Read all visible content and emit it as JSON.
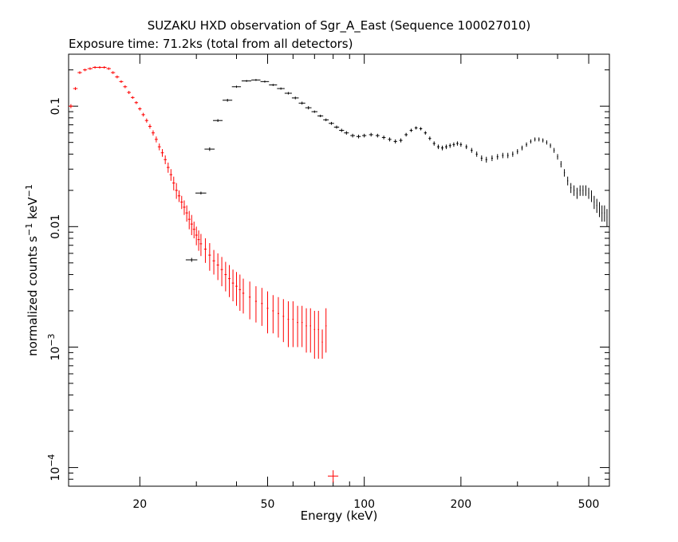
{
  "chart_data": {
    "type": "scatter",
    "title": "SUZAKU HXD observation of Sgr_A_East (Sequence 100027010)",
    "subtitle": "Exposure time: 71.2ks (total from all detectors)",
    "xlabel": "Energy (keV)",
    "ylabel": "normalized counts s^-1 keV^-1",
    "ylabel_parts": {
      "main": "normalized counts s",
      "exp1": "−1",
      "mid": " keV",
      "exp2": "−1"
    },
    "xscale": "log",
    "yscale": "log",
    "xlim": [
      12,
      580
    ],
    "ylim": [
      7e-05,
      0.27
    ],
    "x_ticks": [
      {
        "value": 20,
        "label": "20"
      },
      {
        "value": 50,
        "label": "50"
      },
      {
        "value": 100,
        "label": "100"
      },
      {
        "value": 200,
        "label": "200"
      },
      {
        "value": 500,
        "label": "500"
      }
    ],
    "y_ticks": [
      {
        "value": 0.1,
        "label": "0.1",
        "base": "",
        "exp": ""
      },
      {
        "value": 0.01,
        "label": "0.01",
        "base": "",
        "exp": ""
      },
      {
        "value": 0.001,
        "label": "",
        "base": "10",
        "exp": "−3"
      },
      {
        "value": 0.0001,
        "label": "",
        "base": "10",
        "exp": "−4"
      }
    ],
    "grid": false,
    "series": [
      {
        "color": "#ff0000",
        "points": [
          [
            12.2,
            0.1,
            0.2,
            0.004
          ],
          [
            12.6,
            0.14,
            0.2,
            0.004
          ],
          [
            13.0,
            0.19,
            0.2,
            0.005
          ],
          [
            13.5,
            0.2,
            0.2,
            0.005
          ],
          [
            14.0,
            0.205,
            0.25,
            0.005
          ],
          [
            14.5,
            0.21,
            0.25,
            0.005
          ],
          [
            15.0,
            0.21,
            0.25,
            0.005
          ],
          [
            15.5,
            0.21,
            0.25,
            0.005
          ],
          [
            16.0,
            0.205,
            0.25,
            0.005
          ],
          [
            16.5,
            0.19,
            0.25,
            0.005
          ],
          [
            17.0,
            0.175,
            0.25,
            0.005
          ],
          [
            17.5,
            0.16,
            0.25,
            0.004
          ],
          [
            18.0,
            0.145,
            0.25,
            0.004
          ],
          [
            18.5,
            0.13,
            0.25,
            0.004
          ],
          [
            19.0,
            0.118,
            0.25,
            0.003
          ],
          [
            19.5,
            0.107,
            0.25,
            0.003
          ],
          [
            20.0,
            0.095,
            0.25,
            0.003
          ],
          [
            20.5,
            0.085,
            0.25,
            0.003
          ],
          [
            21.0,
            0.076,
            0.25,
            0.003
          ],
          [
            21.5,
            0.068,
            0.25,
            0.003
          ],
          [
            22.0,
            0.06,
            0.25,
            0.003
          ],
          [
            22.5,
            0.053,
            0.25,
            0.003
          ],
          [
            23.0,
            0.046,
            0.25,
            0.003
          ],
          [
            23.5,
            0.041,
            0.25,
            0.003
          ],
          [
            24.0,
            0.036,
            0.25,
            0.003
          ],
          [
            24.5,
            0.031,
            0.25,
            0.003
          ],
          [
            25.0,
            0.027,
            0.25,
            0.003
          ],
          [
            25.5,
            0.023,
            0.25,
            0.003
          ],
          [
            26.0,
            0.02,
            0.25,
            0.003
          ],
          [
            26.5,
            0.018,
            0.25,
            0.002
          ],
          [
            27.0,
            0.016,
            0.25,
            0.002
          ],
          [
            27.5,
            0.0145,
            0.25,
            0.002
          ],
          [
            28.0,
            0.013,
            0.25,
            0.002
          ],
          [
            28.5,
            0.0115,
            0.25,
            0.002
          ],
          [
            29.0,
            0.0105,
            0.25,
            0.002
          ],
          [
            29.5,
            0.0095,
            0.25,
            0.0015
          ],
          [
            30.0,
            0.0085,
            0.25,
            0.0015
          ],
          [
            30.5,
            0.0078,
            0.25,
            0.0015
          ],
          [
            31.0,
            0.0072,
            0.25,
            0.0015
          ],
          [
            32.0,
            0.0065,
            0.3,
            0.0015
          ],
          [
            33.0,
            0.0058,
            0.3,
            0.0015
          ],
          [
            34.0,
            0.0052,
            0.3,
            0.0012
          ],
          [
            35.0,
            0.0048,
            0.3,
            0.0012
          ],
          [
            36.0,
            0.0044,
            0.3,
            0.0012
          ],
          [
            37.0,
            0.004,
            0.3,
            0.0011
          ],
          [
            38.0,
            0.0037,
            0.3,
            0.0011
          ],
          [
            39.0,
            0.0034,
            0.3,
            0.001
          ],
          [
            40.0,
            0.0032,
            0.3,
            0.001
          ],
          [
            41.0,
            0.003,
            0.3,
            0.001
          ],
          [
            42.0,
            0.0028,
            0.3,
            0.0009
          ],
          [
            44.0,
            0.0026,
            0.3,
            0.0009
          ],
          [
            46.0,
            0.0024,
            0.3,
            0.0008
          ],
          [
            48.0,
            0.0023,
            0.3,
            0.0008
          ],
          [
            50.0,
            0.0021,
            0.3,
            0.0008
          ],
          [
            52.0,
            0.002,
            0.3,
            0.0007
          ],
          [
            54.0,
            0.0019,
            0.3,
            0.0007
          ],
          [
            56.0,
            0.0018,
            0.3,
            0.0007
          ],
          [
            58.0,
            0.0017,
            0.3,
            0.0007
          ],
          [
            60.0,
            0.0017,
            0.3,
            0.0007
          ],
          [
            62.0,
            0.0016,
            0.3,
            0.0006
          ],
          [
            64.0,
            0.0016,
            0.3,
            0.0006
          ],
          [
            66.0,
            0.0015,
            0.3,
            0.0006
          ],
          [
            68.0,
            0.0015,
            0.3,
            0.0006
          ],
          [
            70.0,
            0.0014,
            0.3,
            0.0006
          ],
          [
            72.0,
            0.0014,
            0.3,
            0.0006
          ],
          [
            74.0,
            0.0011,
            0.3,
            0.0003
          ],
          [
            76.0,
            0.0015,
            0.3,
            0.0006
          ],
          [
            80.0,
            8.5e-05,
            3.0,
            1e-05
          ]
        ]
      },
      {
        "color": "#000000",
        "points": [
          [
            29.0,
            0.0053,
            1.2,
            0.0002
          ],
          [
            31.0,
            0.019,
            1.2,
            0.0005
          ],
          [
            33.0,
            0.044,
            1.2,
            0.0015
          ],
          [
            35.0,
            0.076,
            1.2,
            0.002
          ],
          [
            37.5,
            0.112,
            1.3,
            0.003
          ],
          [
            40.0,
            0.145,
            1.3,
            0.003
          ],
          [
            43.0,
            0.162,
            1.5,
            0.003
          ],
          [
            46.0,
            0.165,
            1.5,
            0.003
          ],
          [
            49.0,
            0.16,
            1.5,
            0.003
          ],
          [
            52.0,
            0.15,
            1.5,
            0.003
          ],
          [
            55.0,
            0.14,
            1.5,
            0.003
          ],
          [
            58.0,
            0.128,
            1.5,
            0.003
          ],
          [
            61.0,
            0.117,
            1.5,
            0.003
          ],
          [
            64.0,
            0.106,
            1.5,
            0.003
          ],
          [
            67.0,
            0.097,
            1.5,
            0.003
          ],
          [
            70.0,
            0.09,
            1.5,
            0.002
          ],
          [
            73.0,
            0.083,
            1.5,
            0.002
          ],
          [
            76.0,
            0.077,
            1.5,
            0.002
          ],
          [
            79.0,
            0.072,
            1.5,
            0.002
          ],
          [
            82.0,
            0.067,
            1.5,
            0.002
          ],
          [
            85.0,
            0.063,
            1.5,
            0.002
          ],
          [
            88.0,
            0.06,
            1.5,
            0.002
          ],
          [
            92.0,
            0.057,
            1.5,
            0.002
          ],
          [
            96.0,
            0.056,
            1.5,
            0.002
          ],
          [
            100.0,
            0.057,
            1.5,
            0.002
          ],
          [
            105.0,
            0.058,
            1.5,
            0.002
          ],
          [
            110.0,
            0.057,
            1.5,
            0.002
          ],
          [
            115.0,
            0.055,
            1.5,
            0.002
          ],
          [
            120.0,
            0.053,
            1.5,
            0.002
          ],
          [
            125.0,
            0.051,
            1.5,
            0.002
          ],
          [
            130.0,
            0.052,
            1.5,
            0.002
          ],
          [
            135.0,
            0.058,
            1.5,
            0.002
          ],
          [
            140.0,
            0.063,
            1.5,
            0.002
          ],
          [
            145.0,
            0.066,
            1.5,
            0.002
          ],
          [
            150.0,
            0.065,
            1.5,
            0.002
          ],
          [
            155.0,
            0.06,
            1.5,
            0.002
          ],
          [
            160.0,
            0.054,
            1.5,
            0.002
          ],
          [
            165.0,
            0.049,
            1.5,
            0.002
          ],
          [
            170.0,
            0.046,
            1.5,
            0.002
          ],
          [
            175.0,
            0.045,
            1.5,
            0.002
          ],
          [
            180.0,
            0.046,
            1.5,
            0.002
          ],
          [
            185.0,
            0.047,
            1.5,
            0.002
          ],
          [
            190.0,
            0.048,
            1.5,
            0.002
          ],
          [
            195.0,
            0.049,
            1.5,
            0.002
          ],
          [
            200.0,
            0.048,
            1.5,
            0.002
          ],
          [
            208.0,
            0.046,
            1.5,
            0.002
          ],
          [
            216.0,
            0.043,
            1.5,
            0.002
          ],
          [
            224.0,
            0.04,
            1.5,
            0.002
          ],
          [
            232.0,
            0.037,
            1.5,
            0.002
          ],
          [
            240.0,
            0.036,
            1.5,
            0.002
          ],
          [
            250.0,
            0.037,
            1.5,
            0.002
          ],
          [
            260.0,
            0.038,
            1.5,
            0.002
          ],
          [
            270.0,
            0.039,
            1.5,
            0.002
          ],
          [
            280.0,
            0.039,
            1.5,
            0.002
          ],
          [
            290.0,
            0.04,
            1.5,
            0.002
          ],
          [
            300.0,
            0.042,
            1.5,
            0.002
          ],
          [
            310.0,
            0.045,
            1.5,
            0.002
          ],
          [
            320.0,
            0.048,
            1.5,
            0.002
          ],
          [
            330.0,
            0.051,
            1.5,
            0.002
          ],
          [
            340.0,
            0.053,
            1.5,
            0.002
          ],
          [
            350.0,
            0.053,
            1.5,
            0.002
          ],
          [
            360.0,
            0.052,
            1.5,
            0.002
          ],
          [
            370.0,
            0.05,
            1.5,
            0.002
          ],
          [
            380.0,
            0.047,
            1.5,
            0.002
          ],
          [
            390.0,
            0.043,
            1.5,
            0.002
          ],
          [
            400.0,
            0.038,
            1.5,
            0.002
          ],
          [
            410.0,
            0.033,
            1.5,
            0.002
          ],
          [
            420.0,
            0.028,
            1.5,
            0.002
          ],
          [
            430.0,
            0.024,
            1.5,
            0.002
          ],
          [
            440.0,
            0.021,
            1.5,
            0.002
          ],
          [
            450.0,
            0.02,
            1.5,
            0.002
          ],
          [
            460.0,
            0.019,
            1.5,
            0.002
          ],
          [
            470.0,
            0.02,
            1.5,
            0.002
          ],
          [
            480.0,
            0.02,
            1.5,
            0.002
          ],
          [
            490.0,
            0.02,
            1.5,
            0.002
          ],
          [
            500.0,
            0.019,
            1.5,
            0.002
          ],
          [
            510.0,
            0.018,
            1.5,
            0.002
          ],
          [
            520.0,
            0.016,
            1.5,
            0.002
          ],
          [
            530.0,
            0.015,
            1.5,
            0.002
          ],
          [
            540.0,
            0.014,
            1.5,
            0.002
          ],
          [
            550.0,
            0.013,
            1.5,
            0.002
          ],
          [
            560.0,
            0.013,
            1.5,
            0.002
          ],
          [
            570.0,
            0.012,
            1.5,
            0.002
          ]
        ]
      }
    ]
  }
}
